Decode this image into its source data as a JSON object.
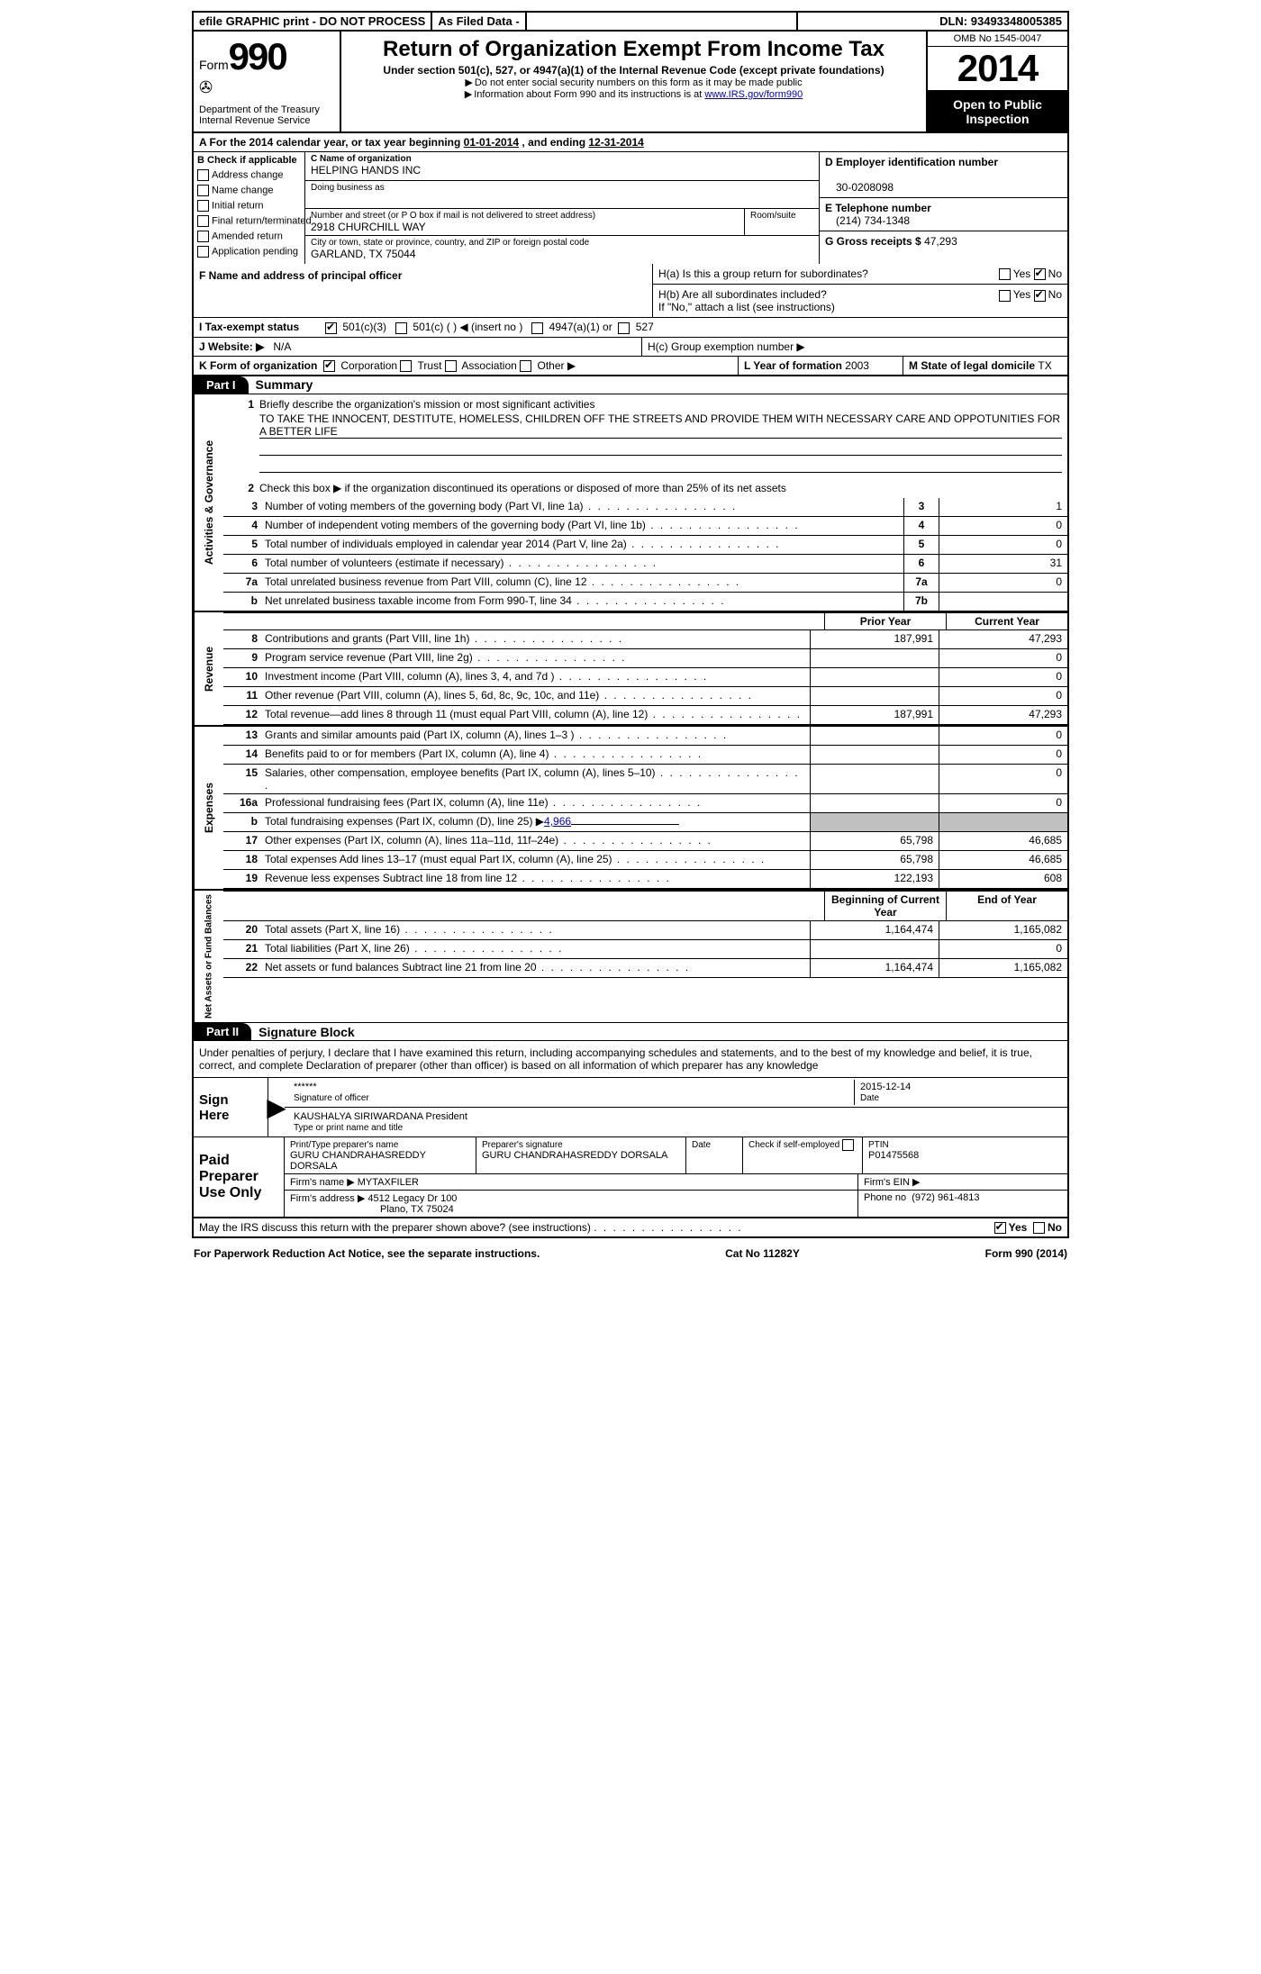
{
  "topbar": {
    "efile": "efile GRAPHIC print - DO NOT PROCESS",
    "asfiled": "As Filed Data -",
    "dln_label": "DLN:",
    "dln": "93493348005385"
  },
  "header": {
    "form_label": "Form",
    "form_num": "990",
    "dept1": "Department of the Treasury",
    "dept2": "Internal Revenue Service",
    "title": "Return of Organization Exempt From Income Tax",
    "sub": "Under section 501(c), 527, or 4947(a)(1) of the Internal Revenue Code (except private foundations)",
    "note1": "Do not enter social security numbers on this form as it may be made public",
    "note2_a": "Information about Form 990 and its instructions is at ",
    "note2_link": "www.IRS.gov/form990",
    "omb": "OMB No 1545-0047",
    "year": "2014",
    "inspect": "Open to Public Inspection"
  },
  "sectionA": {
    "text_a": "A For the 2014 calendar year, or tax year beginning ",
    "begin": "01-01-2014",
    "mid": ", and ending ",
    "end": "12-31-2014"
  },
  "B": {
    "header": "B Check if applicable",
    "items": [
      "Address change",
      "Name change",
      "Initial return",
      "Final return/terminated",
      "Amended return",
      "Application pending"
    ]
  },
  "C": {
    "name_lbl": "C Name of organization",
    "name": "HELPING HANDS INC",
    "dba_lbl": "Doing business as",
    "dba": "",
    "addr_lbl": "Number and street (or P O  box if mail is not delivered to street address)",
    "room_lbl": "Room/suite",
    "addr": "2918 CHURCHILL WAY",
    "city_lbl": "City or town, state or province, country, and ZIP or foreign postal code",
    "city": "GARLAND, TX  75044"
  },
  "D": {
    "lbl": "D Employer identification number",
    "val": "30-0208098"
  },
  "E": {
    "lbl": "E Telephone number",
    "val": "(214) 734-1348"
  },
  "G": {
    "lbl": "G Gross receipts $",
    "val": "47,293"
  },
  "F": {
    "lbl": "F   Name and address of principal officer"
  },
  "H": {
    "ha": "H(a)  Is this a group return for subordinates?",
    "hb": "H(b)  Are all subordinates included?",
    "hb_note": "If \"No,\" attach a list  (see instructions)",
    "hc": "H(c)  Group exemption number ▶",
    "yes": "Yes",
    "no": "No"
  },
  "I": {
    "lbl": "I   Tax-exempt status",
    "opts": [
      "501(c)(3)",
      "501(c) (  ) ◀ (insert no )",
      "4947(a)(1) or",
      "527"
    ]
  },
  "J": {
    "lbl": "J   Website: ▶",
    "val": "N/A"
  },
  "K": {
    "lbl": "K Form of organization",
    "opts": [
      "Corporation",
      "Trust",
      "Association",
      "Other ▶"
    ]
  },
  "L": {
    "lbl": "L Year of formation",
    "val": "2003"
  },
  "M": {
    "lbl": "M State of legal domicile",
    "val": "TX"
  },
  "partI": {
    "label": "Part I",
    "title": "Summary"
  },
  "mission": {
    "q1": "Briefly describe the organization's mission or most significant activities",
    "text": "TO TAKE THE INNOCENT, DESTITUTE, HOMELESS, CHILDREN OFF THE STREETS AND PROVIDE THEM WITH NECESSARY CARE AND OPPOTUNITIES FOR A BETTER LIFE",
    "q2": "Check this box ▶     if the organization discontinued its operations or disposed of more than 25% of its net assets"
  },
  "gov_lines": [
    {
      "n": "3",
      "d": "Number of voting members of the governing body (Part VI, line 1a)",
      "box": "3",
      "v": "1"
    },
    {
      "n": "4",
      "d": "Number of independent voting members of the governing body (Part VI, line 1b)",
      "box": "4",
      "v": "0"
    },
    {
      "n": "5",
      "d": "Total number of individuals employed in calendar year 2014 (Part V, line 2a)",
      "box": "5",
      "v": "0"
    },
    {
      "n": "6",
      "d": "Total number of volunteers (estimate if necessary)",
      "box": "6",
      "v": "31"
    },
    {
      "n": "7a",
      "d": "Total unrelated business revenue from Part VIII, column (C), line 12",
      "box": "7a",
      "v": "0"
    },
    {
      "n": "b",
      "d": "Net unrelated business taxable income from Form 990-T, line 34",
      "box": "7b",
      "v": ""
    }
  ],
  "col_headers": {
    "blank": "",
    "prior": "Prior Year",
    "curr": "Current Year"
  },
  "revenue_lines": [
    {
      "n": "8",
      "d": "Contributions and grants (Part VIII, line 1h)",
      "p": "187,991",
      "c": "47,293"
    },
    {
      "n": "9",
      "d": "Program service revenue (Part VIII, line 2g)",
      "p": "",
      "c": "0"
    },
    {
      "n": "10",
      "d": "Investment income (Part VIII, column (A), lines 3, 4, and 7d )",
      "p": "",
      "c": "0"
    },
    {
      "n": "11",
      "d": "Other revenue (Part VIII, column (A), lines 5, 6d, 8c, 9c, 10c, and 11e)",
      "p": "",
      "c": "0"
    },
    {
      "n": "12",
      "d": "Total revenue—add lines 8 through 11 (must equal Part VIII, column (A), line 12)",
      "p": "187,991",
      "c": "47,293"
    }
  ],
  "expense_lines": [
    {
      "n": "13",
      "d": "Grants and similar amounts paid (Part IX, column (A), lines 1–3 )",
      "p": "",
      "c": "0"
    },
    {
      "n": "14",
      "d": "Benefits paid to or for members (Part IX, column (A), line 4)",
      "p": "",
      "c": "0"
    },
    {
      "n": "15",
      "d": "Salaries, other compensation, employee benefits (Part IX, column (A), lines 5–10)",
      "p": "",
      "c": "0"
    },
    {
      "n": "16a",
      "d": "Professional fundraising fees (Part IX, column (A), line 11e)",
      "p": "",
      "c": "0"
    },
    {
      "n": "b",
      "d": "Total fundraising expenses (Part IX, column (D), line 25) ▶",
      "link": "4,966",
      "p": "shade",
      "c": "shade"
    },
    {
      "n": "17",
      "d": "Other expenses (Part IX, column (A), lines 11a–11d, 11f–24e)",
      "p": "65,798",
      "c": "46,685"
    },
    {
      "n": "18",
      "d": "Total expenses  Add lines 13–17 (must equal Part IX, column (A), line 25)",
      "p": "65,798",
      "c": "46,685"
    },
    {
      "n": "19",
      "d": "Revenue less expenses  Subtract line 18 from line 12",
      "p": "122,193",
      "c": "608"
    }
  ],
  "net_headers": {
    "prior": "Beginning of Current Year",
    "curr": "End of Year"
  },
  "net_lines": [
    {
      "n": "20",
      "d": "Total assets (Part X, line 16)",
      "p": "1,164,474",
      "c": "1,165,082"
    },
    {
      "n": "21",
      "d": "Total liabilities (Part X, line 26)",
      "p": "",
      "c": "0"
    },
    {
      "n": "22",
      "d": "Net assets or fund balances  Subtract line 21 from line 20",
      "p": "1,164,474",
      "c": "1,165,082"
    }
  ],
  "vtabs": {
    "gov": "Activities & Governance",
    "rev": "Revenue",
    "exp": "Expenses",
    "net": "Net Assets or Fund Balances"
  },
  "partII": {
    "label": "Part II",
    "title": "Signature Block"
  },
  "sig": {
    "decl": "Under penalties of perjury, I declare that I have examined this return, including accompanying schedules and statements, and to the best of my knowledge and belief, it is true, correct, and complete  Declaration of preparer (other than officer) is based on all information of which preparer has any knowledge",
    "sign_here": "Sign Here",
    "sig_line": "******",
    "sig_officer_lbl": "Signature of officer",
    "date": "2015-12-14",
    "date_lbl": "Date",
    "name": "KAUSHALYA SIRIWARDANA President",
    "name_lbl": "Type or print name and title",
    "paid": "Paid Preparer Use Only",
    "prep_name_lbl": "Print/Type preparer's name",
    "prep_name": "GURU CHANDRAHASREDDY DORSALA",
    "prep_sig_lbl": "Preparer's signature",
    "prep_sig": "GURU CHANDRAHASREDDY DORSALA",
    "prep_date_lbl": "Date",
    "self_emp": "Check       if self-employed",
    "ptin_lbl": "PTIN",
    "ptin": "P01475568",
    "firm_name_lbl": "Firm's name    ▶",
    "firm_name": "MYTAXFILER",
    "firm_ein_lbl": "Firm's EIN ▶",
    "firm_addr_lbl": "Firm's address ▶",
    "firm_addr1": "4512 Legacy Dr 100",
    "firm_addr2": "Plano, TX  75024",
    "phone_lbl": "Phone no",
    "phone": "(972) 961-4813",
    "discuss": "May the IRS discuss this return with the preparer shown above? (see instructions)",
    "yes": "Yes",
    "no": "No"
  },
  "footer": {
    "left": "For Paperwork Reduction Act Notice, see the separate instructions.",
    "mid": "Cat No 11282Y",
    "right": "Form 990 (2014)"
  }
}
